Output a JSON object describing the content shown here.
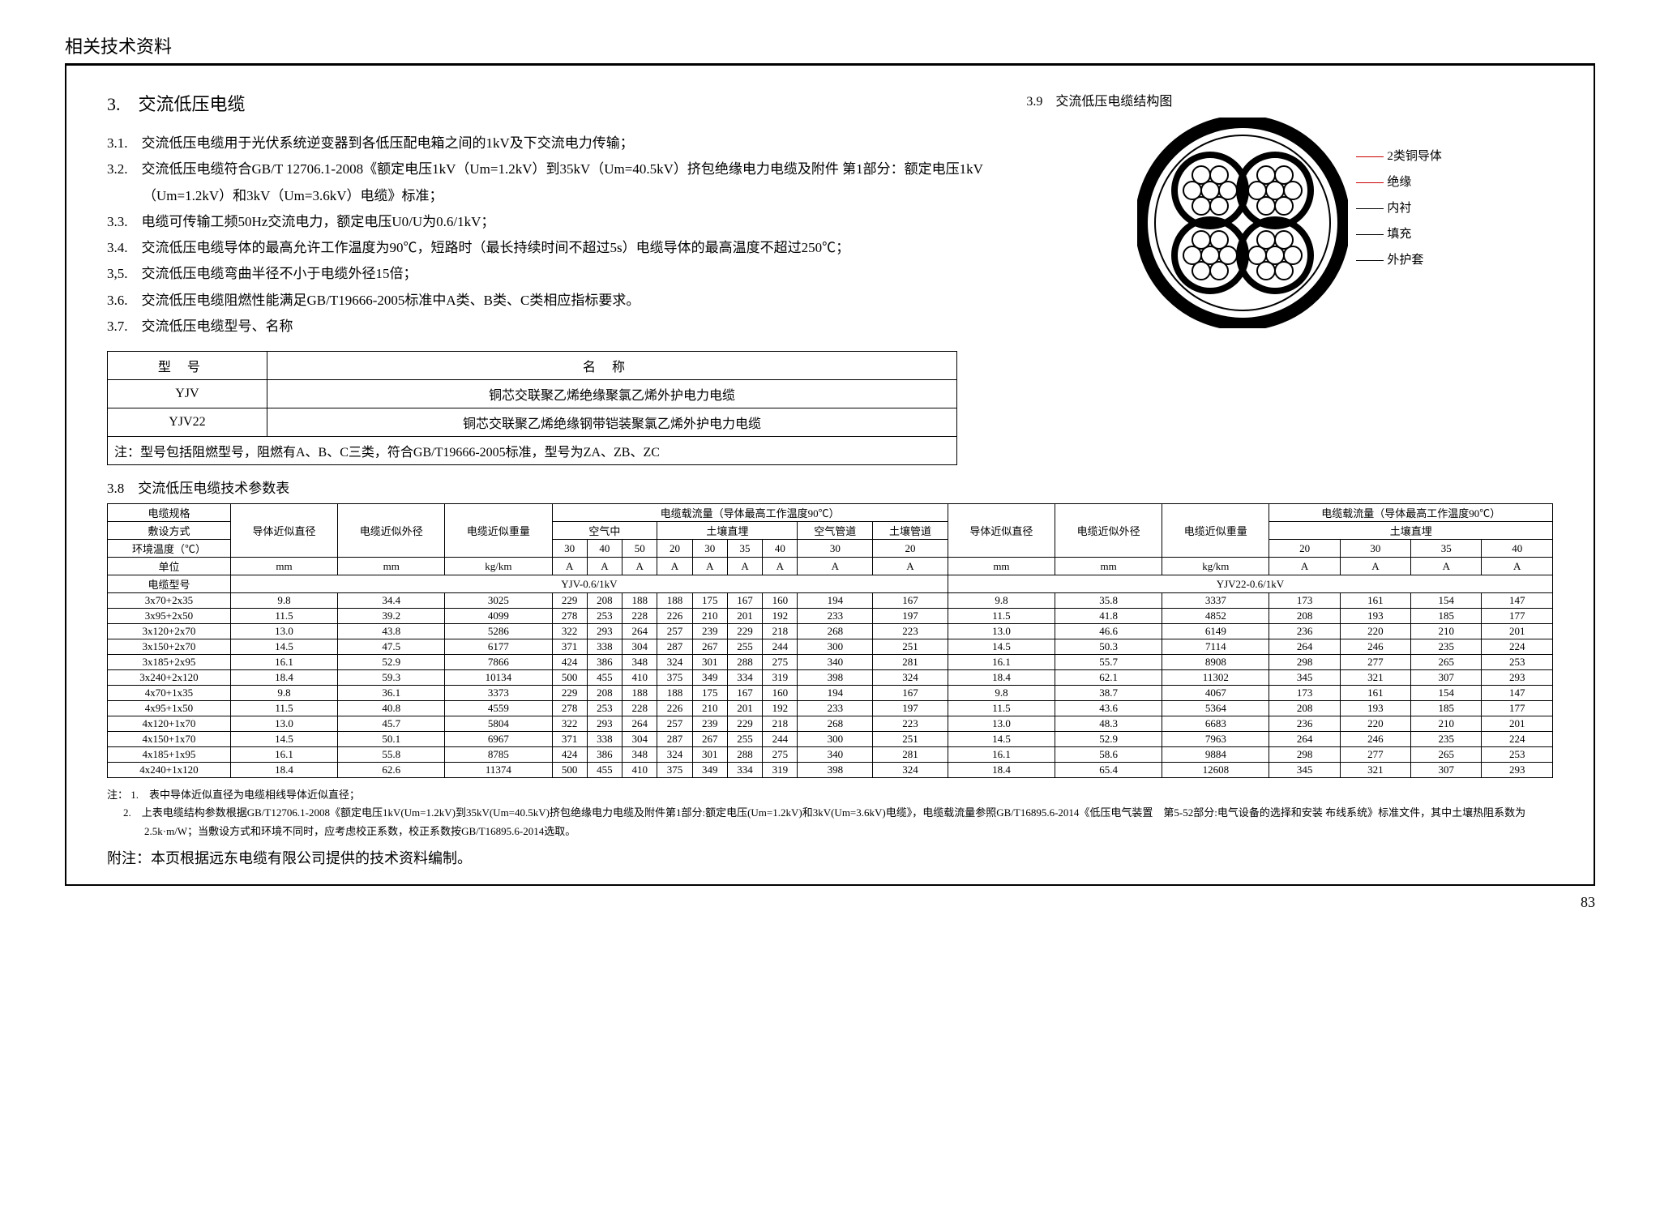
{
  "header": "相关技术资料",
  "title": "3.　交流低压电缆",
  "specs": [
    "3.1.　交流低压电缆用于光伏系统逆变器到各低压配电箱之间的1kV及下交流电力传输；",
    "3.2.　交流低压电缆符合GB/T 12706.1-2008《额定电压1kV（Um=1.2kV）到35kV（Um=40.5kV）挤包绝缘电力电缆及附件 第1部分：额定电压1kV（Um=1.2kV）和3kV（Um=3.6kV）电缆》标准；",
    "3.3.　电缆可传输工频50Hz交流电力，额定电压U0/U为0.6/1kV；",
    "3.4.　交流低压电缆导体的最高允许工作温度为90℃，短路时（最长持续时间不超过5s）电缆导体的最高温度不超过250℃；",
    "3,5.　交流低压电缆弯曲半径不小于电缆外径15倍；",
    "3.6.　交流低压电缆阻燃性能满足GB/T19666-2005标准中A类、B类、C类相应指标要求。",
    "3.7.　交流低压电缆型号、名称"
  ],
  "type_table": {
    "headers": [
      "型号",
      "名称"
    ],
    "rows": [
      [
        "YJV",
        "铜芯交联聚乙烯绝缘聚氯乙烯外护电力电缆"
      ],
      [
        "YJV22",
        "铜芯交联聚乙烯绝缘钢带铠装聚氯乙烯外护电力电缆"
      ]
    ],
    "note": "注：型号包括阻燃型号，阻燃有A、B、C三类，符合GB/T19666-2005标准，型号为ZA、ZB、ZC"
  },
  "param_title": "3.8　交流低压电缆技术参数表",
  "diagram": {
    "title": "3.9　交流低压电缆结构图",
    "labels": [
      "2类铜导体",
      "绝缘",
      "内衬",
      "填充",
      "外护套"
    ]
  },
  "big_table": {
    "h": {
      "spec": "电缆规格",
      "diam": "导体近似直径",
      "od": "电缆近似外径",
      "wt": "电缆近似重量",
      "amp": "电缆载流量（导体最高工作温度90℃）",
      "lay": "敷设方式",
      "air": "空气中",
      "bury": "土壤直埋",
      "aduct": "空气管道",
      "sduct": "土壤管道",
      "env": "环境温度（℃）",
      "unit": "单位",
      "ctype": "电缆型号",
      "yjv": "YJV-0.6/1kV",
      "yjv22": "YJV22-0.6/1kV"
    },
    "temps1": [
      "30",
      "40",
      "50",
      "20",
      "30",
      "35",
      "40",
      "30",
      "20"
    ],
    "temps2": [
      "20",
      "30",
      "35",
      "40"
    ],
    "units1": [
      "mm",
      "mm",
      "kg/km",
      "A",
      "A",
      "A",
      "A",
      "A",
      "A",
      "A",
      "A",
      "A"
    ],
    "units2": [
      "mm",
      "mm",
      "kg/km",
      "A",
      "A",
      "A",
      "A"
    ],
    "rows": [
      {
        "s": "3x70+2x35",
        "l": [
          "9.8",
          "34.4",
          "3025",
          "229",
          "208",
          "188",
          "188",
          "175",
          "167",
          "160",
          "194",
          "167"
        ],
        "r": [
          "9.8",
          "35.8",
          "3337",
          "173",
          "161",
          "154",
          "147"
        ]
      },
      {
        "s": "3x95+2x50",
        "l": [
          "11.5",
          "39.2",
          "4099",
          "278",
          "253",
          "228",
          "226",
          "210",
          "201",
          "192",
          "233",
          "197"
        ],
        "r": [
          "11.5",
          "41.8",
          "4852",
          "208",
          "193",
          "185",
          "177"
        ]
      },
      {
        "s": "3x120+2x70",
        "l": [
          "13.0",
          "43.8",
          "5286",
          "322",
          "293",
          "264",
          "257",
          "239",
          "229",
          "218",
          "268",
          "223"
        ],
        "r": [
          "13.0",
          "46.6",
          "6149",
          "236",
          "220",
          "210",
          "201"
        ]
      },
      {
        "s": "3x150+2x70",
        "l": [
          "14.5",
          "47.5",
          "6177",
          "371",
          "338",
          "304",
          "287",
          "267",
          "255",
          "244",
          "300",
          "251"
        ],
        "r": [
          "14.5",
          "50.3",
          "7114",
          "264",
          "246",
          "235",
          "224"
        ]
      },
      {
        "s": "3x185+2x95",
        "l": [
          "16.1",
          "52.9",
          "7866",
          "424",
          "386",
          "348",
          "324",
          "301",
          "288",
          "275",
          "340",
          "281"
        ],
        "r": [
          "16.1",
          "55.7",
          "8908",
          "298",
          "277",
          "265",
          "253"
        ]
      },
      {
        "s": "3x240+2x120",
        "l": [
          "18.4",
          "59.3",
          "10134",
          "500",
          "455",
          "410",
          "375",
          "349",
          "334",
          "319",
          "398",
          "324"
        ],
        "r": [
          "18.4",
          "62.1",
          "11302",
          "345",
          "321",
          "307",
          "293"
        ]
      },
      {
        "s": "4x70+1x35",
        "l": [
          "9.8",
          "36.1",
          "3373",
          "229",
          "208",
          "188",
          "188",
          "175",
          "167",
          "160",
          "194",
          "167"
        ],
        "r": [
          "9.8",
          "38.7",
          "4067",
          "173",
          "161",
          "154",
          "147"
        ]
      },
      {
        "s": "4x95+1x50",
        "l": [
          "11.5",
          "40.8",
          "4559",
          "278",
          "253",
          "228",
          "226",
          "210",
          "201",
          "192",
          "233",
          "197"
        ],
        "r": [
          "11.5",
          "43.6",
          "5364",
          "208",
          "193",
          "185",
          "177"
        ]
      },
      {
        "s": "4x120+1x70",
        "l": [
          "13.0",
          "45.7",
          "5804",
          "322",
          "293",
          "264",
          "257",
          "239",
          "229",
          "218",
          "268",
          "223"
        ],
        "r": [
          "13.0",
          "48.3",
          "6683",
          "236",
          "220",
          "210",
          "201"
        ]
      },
      {
        "s": "4x150+1x70",
        "l": [
          "14.5",
          "50.1",
          "6967",
          "371",
          "338",
          "304",
          "287",
          "267",
          "255",
          "244",
          "300",
          "251"
        ],
        "r": [
          "14.5",
          "52.9",
          "7963",
          "264",
          "246",
          "235",
          "224"
        ]
      },
      {
        "s": "4x185+1x95",
        "l": [
          "16.1",
          "55.8",
          "8785",
          "424",
          "386",
          "348",
          "324",
          "301",
          "288",
          "275",
          "340",
          "281"
        ],
        "r": [
          "16.1",
          "58.6",
          "9884",
          "298",
          "277",
          "265",
          "253"
        ]
      },
      {
        "s": "4x240+1x120",
        "l": [
          "18.4",
          "62.6",
          "11374",
          "500",
          "455",
          "410",
          "375",
          "349",
          "334",
          "319",
          "398",
          "324"
        ],
        "r": [
          "18.4",
          "65.4",
          "12608",
          "345",
          "321",
          "307",
          "293"
        ]
      }
    ]
  },
  "footnotes": {
    "lead": "注：",
    "items": [
      "1.　表中导体近似直径为电缆相线导体近似直径；",
      "2.　上表电缆结构参数根据GB/T12706.1-2008《额定电压1kV(Um=1.2kV)到35kV(Um=40.5kV)挤包绝缘电力电缆及附件第1部分:额定电压(Um=1.2kV)和3kV(Um=3.6kV)电缆》，电缆载流量参照GB/T16895.6-2014《低压电气装置　第5-52部分:电气设备的选择和安装 布线系统》标准文件，其中土壤热阻系数为2.5k·m/W；当敷设方式和环境不同时，应考虑校正系数，校正系数按GB/T16895.6-2014选取。"
    ]
  },
  "appendix": "附注：本页根据远东电缆有限公司提供的技术资料编制。",
  "page": "83"
}
